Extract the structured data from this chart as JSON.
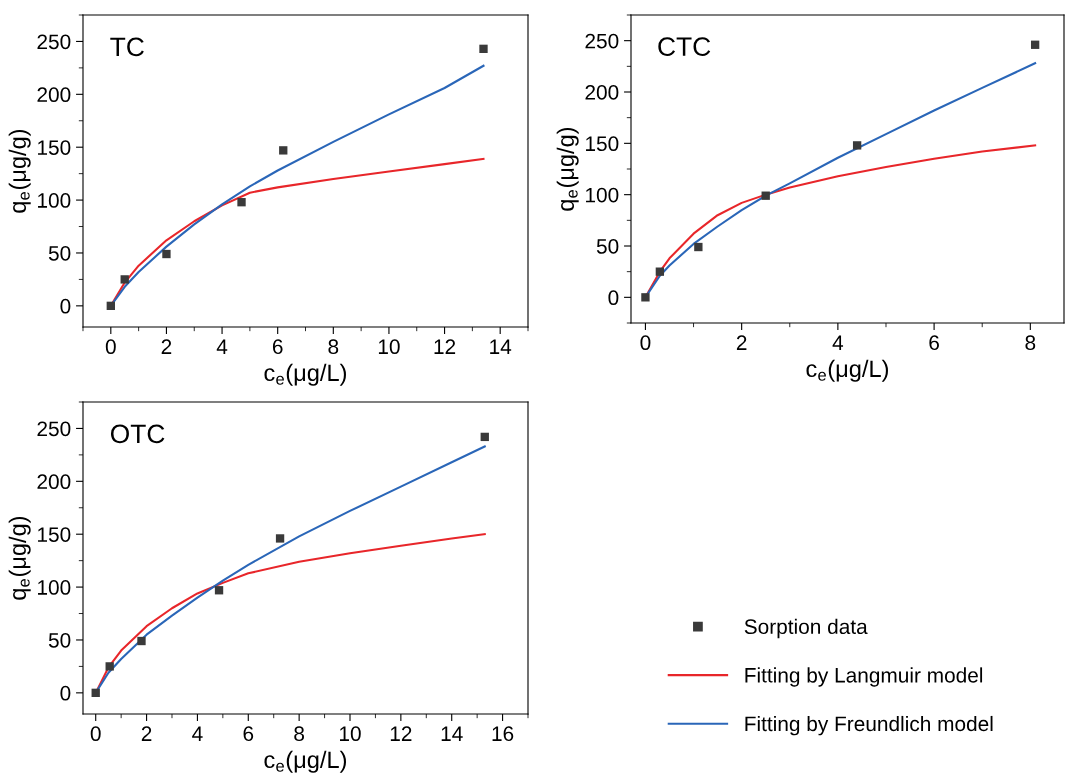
{
  "chart_data": [
    {
      "type": "line",
      "title": "TC",
      "xlabel": "c$_{e}$(μg/L)",
      "ylabel": "q$_{e}$(μg/g)",
      "xlim": [
        -1,
        15
      ],
      "xticks": [
        0,
        2,
        4,
        6,
        8,
        10,
        12,
        14
      ],
      "ylim": [
        -20,
        275
      ],
      "yticks": [
        0,
        50,
        100,
        150,
        200,
        250
      ],
      "grid": false,
      "legend": "bottom right",
      "series": [
        {
          "name": "Sorption data",
          "type": "scatter",
          "marker": "square",
          "color": "#3a3a3a",
          "x": [
            0,
            0.5,
            2,
            4.7,
            6.2,
            13.4
          ],
          "values": [
            0,
            25,
            49,
            98,
            147,
            243
          ]
        },
        {
          "name": "Fitting by Langmuir model",
          "marker": "none",
          "color": "#e8262a",
          "x": [
            0,
            0.5,
            1,
            2,
            3,
            4,
            5,
            6,
            8,
            10,
            12,
            13.4
          ],
          "values": [
            0,
            22,
            38,
            62,
            80,
            95,
            107,
            112,
            120,
            127,
            134,
            139
          ]
        },
        {
          "name": "Fitting by Freundlich model",
          "marker": "none",
          "color": "#2a66b8",
          "x": [
            0,
            0.5,
            1,
            2,
            3,
            4,
            5,
            6,
            8,
            10,
            12,
            13.4
          ],
          "values": [
            0,
            18,
            32,
            56,
            77,
            96,
            113,
            128,
            155,
            181,
            206,
            227
          ]
        }
      ]
    },
    {
      "type": "line",
      "title": "CTC",
      "xlabel": "c$_{e}$(μg/L)",
      "ylabel": "q$_{e}$(μg/g)",
      "xlim": [
        -0.3,
        8.7
      ],
      "xticks": [
        0,
        2,
        4,
        6,
        8
      ],
      "ylim": [
        -25,
        275
      ],
      "yticks": [
        0,
        50,
        100,
        150,
        200,
        250
      ],
      "grid": false,
      "legend": false,
      "series": [
        {
          "type": "scatter",
          "marker": "square",
          "color": "#3a3a3a",
          "x": [
            0,
            0.3,
            1.1,
            2.5,
            4.4,
            8.1
          ],
          "values": [
            0,
            25,
            49,
            99,
            148,
            246
          ]
        },
        {
          "marker": "none",
          "color": "#e8262a",
          "x": [
            0,
            0.3,
            0.5,
            1,
            1.5,
            2,
            2.5,
            3,
            4,
            5,
            6,
            7,
            8.1
          ],
          "values": [
            0,
            25,
            38,
            62,
            80,
            92,
            100,
            107,
            118,
            127,
            135,
            142,
            148
          ]
        },
        {
          "marker": "none",
          "color": "#2a66b8",
          "x": [
            0,
            0.3,
            0.5,
            1,
            1.5,
            2,
            2.5,
            3,
            4,
            5,
            6,
            7,
            8.1
          ],
          "values": [
            0,
            21,
            31,
            52,
            69,
            85,
            99,
            111,
            136,
            159,
            182,
            204,
            228
          ]
        }
      ]
    },
    {
      "type": "line",
      "title": "OTC",
      "xlabel": "c$_{e}$(μg/L)",
      "ylabel": "q$_{e}$(μg/g)",
      "xlim": [
        -0.5,
        17
      ],
      "xticks": [
        0,
        2,
        4,
        6,
        8,
        10,
        12,
        14,
        16
      ],
      "ylim": [
        -20,
        275
      ],
      "yticks": [
        0,
        50,
        100,
        150,
        200,
        250
      ],
      "grid": false,
      "series": [
        {
          "type": "scatter",
          "marker": "square",
          "color": "#3a3a3a",
          "x": [
            0,
            0.55,
            1.8,
            4.85,
            7.25,
            15.3
          ],
          "values": [
            0,
            25,
            49,
            97,
            146,
            242
          ]
        },
        {
          "marker": "none",
          "color": "#e8262a",
          "x": [
            0,
            0.5,
            1,
            2,
            3,
            4,
            5,
            6,
            8,
            10,
            12,
            14,
            15.3
          ],
          "values": [
            0,
            24,
            40,
            63,
            80,
            94,
            104,
            113,
            124,
            132,
            139,
            146,
            150
          ]
        },
        {
          "marker": "none",
          "color": "#2a66b8",
          "x": [
            0,
            0.5,
            1,
            2,
            3,
            4,
            5,
            6,
            8,
            10,
            12,
            14,
            15.3
          ],
          "values": [
            0,
            19,
            32,
            55,
            73,
            90,
            106,
            121,
            148,
            172,
            195,
            218,
            233
          ]
        }
      ]
    }
  ]
}
